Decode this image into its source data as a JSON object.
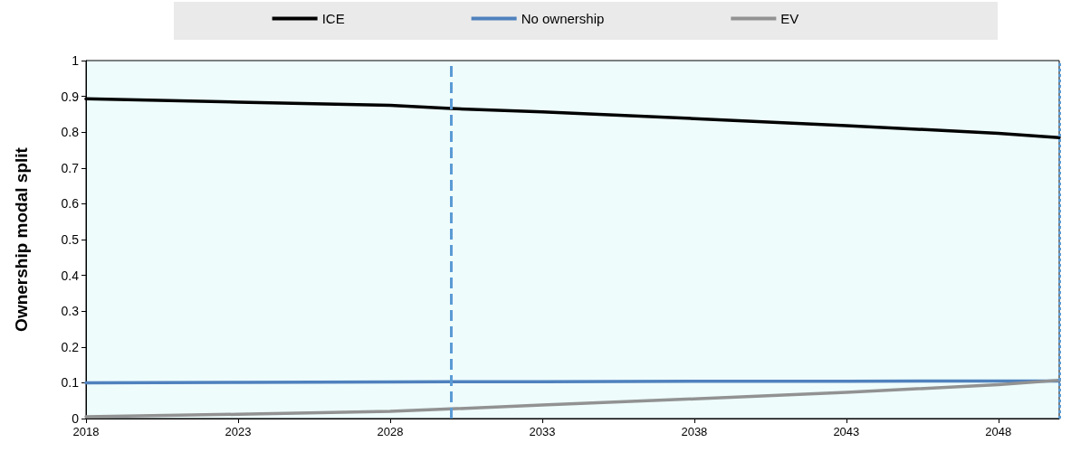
{
  "chart_data": {
    "type": "line",
    "ylabel": "Ownership modal split",
    "x": [
      2018,
      2023,
      2028,
      2030,
      2033,
      2038,
      2043,
      2048,
      2050
    ],
    "series": [
      {
        "name": "ICE",
        "color": "#000000",
        "values": [
          0.893,
          0.884,
          0.875,
          0.866,
          0.857,
          0.838,
          0.818,
          0.797,
          0.785
        ]
      },
      {
        "name": "No ownership",
        "color": "#4f81bd",
        "values": [
          0.1,
          0.101,
          0.102,
          0.103,
          0.103,
          0.104,
          0.104,
          0.105,
          0.105
        ]
      },
      {
        "name": "EV",
        "color": "#929292",
        "values": [
          0.005,
          0.012,
          0.02,
          0.027,
          0.038,
          0.055,
          0.073,
          0.095,
          0.107
        ]
      }
    ],
    "xlim": [
      2018,
      2050
    ],
    "xticks": [
      2018,
      2023,
      2028,
      2033,
      2038,
      2043,
      2048
    ],
    "ylim": [
      0,
      1
    ],
    "yticks": [
      0,
      0.1,
      0.2,
      0.3,
      0.4,
      0.5,
      0.6,
      0.7,
      0.8,
      0.9,
      1
    ],
    "ref_lines": [
      {
        "axis": "x",
        "value": 2030,
        "color": "#5b9bd5",
        "line_style": "dashed"
      },
      {
        "axis": "x",
        "value": 2050,
        "color": "#5b9bd5",
        "line_style": "dotted"
      }
    ],
    "grid": false,
    "legend": "top",
    "marker": "none",
    "line_style": "solid"
  }
}
